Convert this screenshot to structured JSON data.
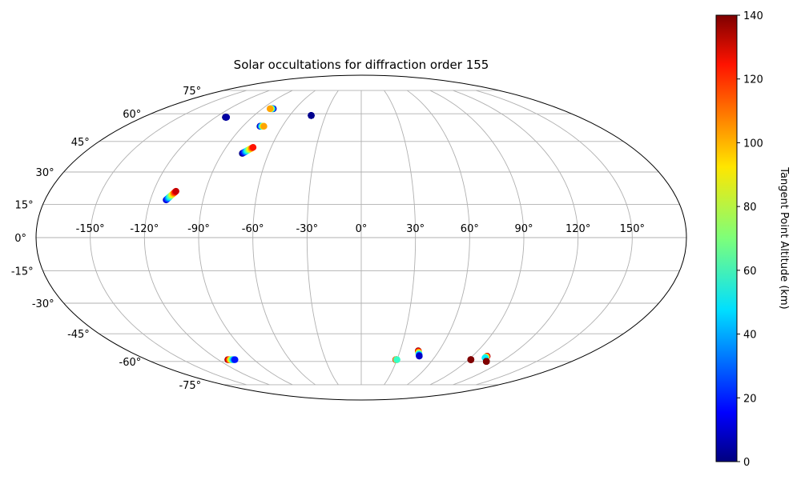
{
  "chart_data": {
    "type": "scatter",
    "projection": "aitoff/mollweide-like world map",
    "title": "Solar occultations for diffraction order 155",
    "grid": true,
    "longitude_ticks": [
      "-150°",
      "-120°",
      "-90°",
      "-60°",
      "-30°",
      "0°",
      "30°",
      "60°",
      "90°",
      "120°",
      "150°"
    ],
    "latitude_ticks": [
      "75°",
      "60°",
      "45°",
      "30°",
      "15°",
      "0°",
      "-15°",
      "-30°",
      "-45°",
      "-60°",
      "-75°"
    ],
    "colorbar": {
      "label": "Tangent Point Altitude (km)",
      "range": [
        0,
        140
      ],
      "ticks": [
        "0",
        "20",
        "40",
        "60",
        "80",
        "100",
        "120",
        "140"
      ],
      "colormap": "jet",
      "location": "right"
    },
    "tracks": [
      {
        "lon_start": -112,
        "lat_start": 58,
        "lon_end": -111,
        "lat_end": 58,
        "alt_start": 0,
        "alt_end": 5
      },
      {
        "lon_start": -80,
        "lat_start": 63,
        "lon_end": -83,
        "lat_end": 63,
        "alt_start": 0,
        "alt_end": 100
      },
      {
        "lon_start": -42,
        "lat_start": 59,
        "lon_end": -42,
        "lat_end": 59,
        "alt_start": 0,
        "alt_end": 2
      },
      {
        "lon_start": -77,
        "lat_start": 53,
        "lon_end": -74,
        "lat_end": 53,
        "alt_start": 0,
        "alt_end": 100
      },
      {
        "lon_start": -77,
        "lat_start": 39,
        "lon_end": -72,
        "lat_end": 42,
        "alt_start": 0,
        "alt_end": 120
      },
      {
        "lon_start": -111,
        "lat_start": 17,
        "lon_end": -107,
        "lat_end": 21,
        "alt_start": 10,
        "alt_end": 130
      },
      {
        "lon_start": -112,
        "lat_start": -59,
        "lon_end": -106,
        "lat_end": -59,
        "alt_start": 140,
        "alt_end": 20
      },
      {
        "lon_start": 29,
        "lat_start": -59,
        "lon_end": 30,
        "lat_end": -59,
        "alt_start": 140,
        "alt_end": 60
      },
      {
        "lon_start": 44,
        "lat_start": -54,
        "lon_end": 47,
        "lat_end": -57,
        "alt_start": 140,
        "alt_end": 10
      },
      {
        "lon_start": 92,
        "lat_start": -59,
        "lon_end": 92,
        "lat_end": -59,
        "alt_start": 140,
        "alt_end": 140
      },
      {
        "lon_start": 102,
        "lat_start": -57,
        "lon_end": 102,
        "lat_end": -58,
        "alt_start": 140,
        "alt_end": 50
      },
      {
        "lon_start": 107,
        "lat_start": -60,
        "lon_end": 107,
        "lat_end": -60,
        "alt_start": 140,
        "alt_end": 140
      }
    ]
  }
}
